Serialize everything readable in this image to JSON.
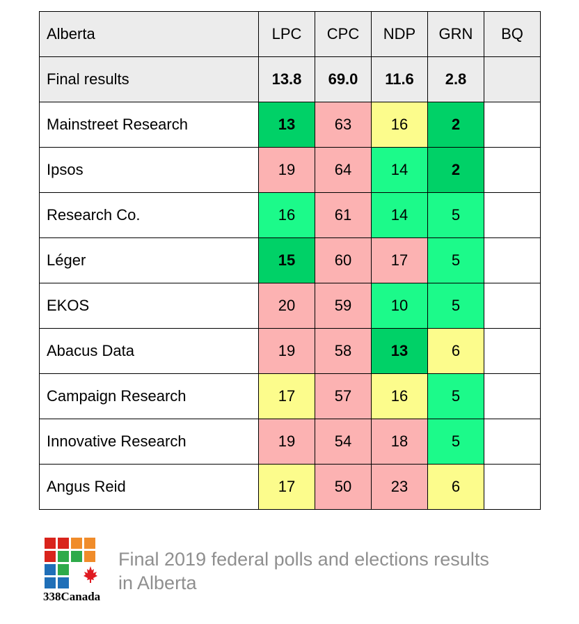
{
  "table": {
    "region": "Alberta",
    "parties": [
      "LPC",
      "CPC",
      "NDP",
      "GRN",
      "BQ"
    ],
    "final": {
      "label": "Final results",
      "values": [
        "13.8",
        "69.0",
        "11.6",
        "2.8",
        ""
      ]
    },
    "rows": [
      {
        "pollster": "Mainstreet Research",
        "values": [
          "13",
          "63",
          "16",
          "2",
          ""
        ],
        "colors": [
          "#00d167",
          "#fcb2b2",
          "#fcfc8c",
          "#00d167",
          "#ffffff"
        ]
      },
      {
        "pollster": "Ipsos",
        "values": [
          "19",
          "64",
          "14",
          "2",
          ""
        ],
        "colors": [
          "#fcb2b2",
          "#fcb2b2",
          "#1cfa8a",
          "#00d167",
          "#ffffff"
        ]
      },
      {
        "pollster": "Research Co.",
        "values": [
          "16",
          "61",
          "14",
          "5",
          ""
        ],
        "colors": [
          "#1cfa8a",
          "#fcb2b2",
          "#1cfa8a",
          "#1cfa8a",
          "#ffffff"
        ]
      },
      {
        "pollster": "Léger",
        "values": [
          "15",
          "60",
          "17",
          "5",
          ""
        ],
        "colors": [
          "#00d167",
          "#fcb2b2",
          "#fcb2b2",
          "#1cfa8a",
          "#ffffff"
        ]
      },
      {
        "pollster": "EKOS",
        "values": [
          "20",
          "59",
          "10",
          "5",
          ""
        ],
        "colors": [
          "#fcb2b2",
          "#fcb2b2",
          "#1cfa8a",
          "#1cfa8a",
          "#ffffff"
        ]
      },
      {
        "pollster": "Abacus Data",
        "values": [
          "19",
          "58",
          "13",
          "6",
          ""
        ],
        "colors": [
          "#fcb2b2",
          "#fcb2b2",
          "#00d167",
          "#fcfc8c",
          "#ffffff"
        ]
      },
      {
        "pollster": "Campaign Research",
        "values": [
          "17",
          "57",
          "16",
          "5",
          ""
        ],
        "colors": [
          "#fcfc8c",
          "#fcb2b2",
          "#fcfc8c",
          "#1cfa8a",
          "#ffffff"
        ]
      },
      {
        "pollster": "Innovative Research",
        "values": [
          "19",
          "54",
          "18",
          "5",
          ""
        ],
        "colors": [
          "#fcb2b2",
          "#fcb2b2",
          "#fcb2b2",
          "#1cfa8a",
          "#ffffff"
        ]
      },
      {
        "pollster": "Angus Reid",
        "values": [
          "17",
          "50",
          "23",
          "6",
          ""
        ],
        "colors": [
          "#fcfc8c",
          "#fcb2b2",
          "#fcb2b2",
          "#fcfc8c",
          "#ffffff"
        ]
      }
    ]
  },
  "footer": {
    "logo_text": "338Canada",
    "caption_line1": "Final 2019 federal polls and elections results",
    "caption_line2": "in Alberta"
  },
  "logo_colors": {
    "red": "#d9241c",
    "orange": "#f08c2a",
    "green": "#2eaa4a",
    "blue": "#1f6fb8",
    "maple": "#e01b22"
  }
}
